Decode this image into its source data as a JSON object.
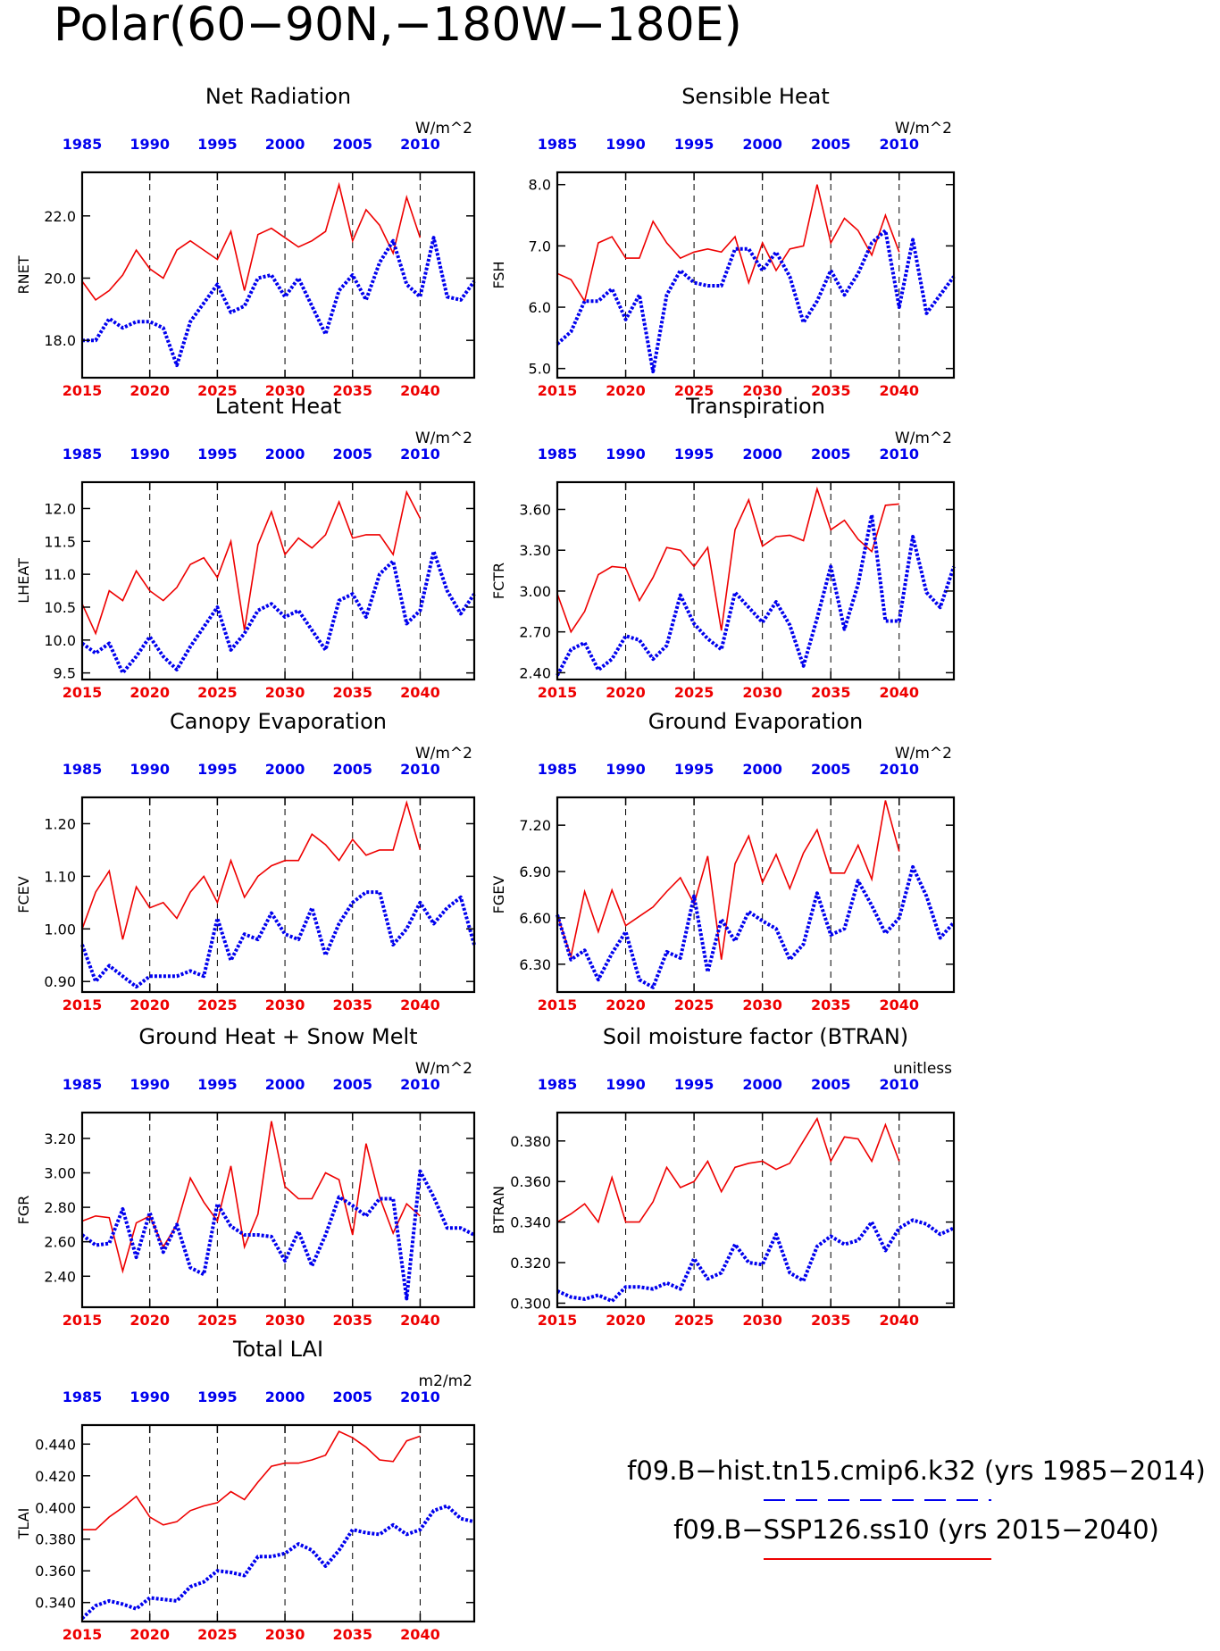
{
  "page_title": "Polar(60−90N,−180W−180E)",
  "colors": {
    "hist": "#0000ee",
    "ssp": "#ee0000",
    "axis": "#000000"
  },
  "legend": [
    {
      "label": "f09.B−hist.tn15.cmip6.k32 (yrs 1985−2014)",
      "color": "#0000ee",
      "style": "dashed"
    },
    {
      "label": "f09.B−SSP126.ss10 (yrs 2015−2040)",
      "color": "#ee0000",
      "style": "solid"
    }
  ],
  "chart_data": [
    {
      "type": "line",
      "title": "Net Radiation",
      "ylabel": "RNET",
      "units": "W/m^2",
      "x_bottom": [
        2015,
        2044
      ],
      "x_bottom_ticks": [
        2015,
        2020,
        2025,
        2030,
        2035,
        2040
      ],
      "x_top": [
        1985,
        2014
      ],
      "x_top_ticks": [
        1985,
        1990,
        1995,
        2000,
        2005,
        2010
      ],
      "ylim": [
        16.8,
        23.4
      ],
      "yticks": [
        18.0,
        20.0,
        22.0
      ],
      "ytick_labels": [
        "18.0",
        "20.0",
        "22.0"
      ],
      "series": [
        {
          "style": "solid",
          "values": [
            19.9,
            19.3,
            19.6,
            20.1,
            20.9,
            20.3,
            20.0,
            20.9,
            21.2,
            20.9,
            20.6,
            21.5,
            19.6,
            21.4,
            21.6,
            21.3,
            21.0,
            21.2,
            21.5,
            23.0,
            21.2,
            22.2,
            21.7,
            20.8,
            22.6,
            21.3
          ]
        },
        {
          "style": "dashed",
          "values": [
            18.0,
            18.0,
            18.7,
            18.4,
            18.6,
            18.6,
            18.4,
            17.2,
            18.6,
            19.2,
            19.8,
            18.9,
            19.1,
            20.0,
            20.1,
            19.4,
            20.0,
            19.1,
            18.2,
            19.6,
            20.1,
            19.3,
            20.5,
            21.2,
            19.8,
            19.4,
            21.3,
            19.4,
            19.3,
            19.9
          ]
        }
      ]
    },
    {
      "type": "line",
      "title": "Sensible Heat",
      "ylabel": "FSH",
      "units": "W/m^2",
      "x_bottom": [
        2015,
        2044
      ],
      "x_bottom_ticks": [
        2015,
        2020,
        2025,
        2030,
        2035,
        2040
      ],
      "x_top": [
        1985,
        2014
      ],
      "x_top_ticks": [
        1985,
        1990,
        1995,
        2000,
        2005,
        2010
      ],
      "ylim": [
        4.85,
        8.2
      ],
      "yticks": [
        5.0,
        6.0,
        7.0,
        8.0
      ],
      "ytick_labels": [
        "5.0",
        "6.0",
        "7.0",
        "8.0"
      ],
      "series": [
        {
          "style": "solid",
          "values": [
            6.55,
            6.45,
            6.1,
            7.05,
            7.15,
            6.8,
            6.8,
            7.4,
            7.05,
            6.8,
            6.9,
            6.95,
            6.9,
            7.15,
            6.4,
            7.05,
            6.6,
            6.95,
            7.0,
            8.0,
            7.05,
            7.45,
            7.25,
            6.85,
            7.5,
            6.9
          ]
        },
        {
          "style": "dashed",
          "values": [
            5.4,
            5.6,
            6.1,
            6.1,
            6.3,
            5.8,
            6.2,
            4.95,
            6.2,
            6.6,
            6.4,
            6.35,
            6.35,
            6.95,
            6.95,
            6.6,
            6.9,
            6.5,
            5.75,
            6.1,
            6.6,
            6.2,
            6.55,
            7.05,
            7.25,
            6.0,
            7.1,
            5.9,
            6.2,
            6.5
          ]
        }
      ]
    },
    {
      "type": "line",
      "title": "Latent Heat",
      "ylabel": "LHEAT",
      "units": "W/m^2",
      "x_bottom": [
        2015,
        2044
      ],
      "x_bottom_ticks": [
        2015,
        2020,
        2025,
        2030,
        2035,
        2040
      ],
      "x_top": [
        1985,
        2014
      ],
      "x_top_ticks": [
        1985,
        1990,
        1995,
        2000,
        2005,
        2010
      ],
      "ylim": [
        9.4,
        12.4
      ],
      "yticks": [
        9.5,
        10.0,
        10.5,
        11.0,
        11.5,
        12.0
      ],
      "ytick_labels": [
        "9.5",
        "10.0",
        "10.5",
        "11.0",
        "11.5",
        "12.0"
      ],
      "series": [
        {
          "style": "solid",
          "values": [
            10.55,
            10.1,
            10.75,
            10.6,
            11.05,
            10.75,
            10.6,
            10.8,
            11.15,
            11.25,
            10.95,
            11.5,
            10.15,
            11.45,
            11.95,
            11.3,
            11.55,
            11.4,
            11.6,
            12.1,
            11.55,
            11.6,
            11.6,
            11.3,
            12.25,
            11.85
          ]
        },
        {
          "style": "dashed",
          "values": [
            9.95,
            9.8,
            9.95,
            9.5,
            9.75,
            10.05,
            9.75,
            9.55,
            9.9,
            10.2,
            10.5,
            9.85,
            10.1,
            10.45,
            10.55,
            10.35,
            10.45,
            10.15,
            9.85,
            10.6,
            10.7,
            10.35,
            11.0,
            11.2,
            10.25,
            10.45,
            11.35,
            10.75,
            10.4,
            10.7
          ]
        }
      ]
    },
    {
      "type": "line",
      "title": "Transpiration",
      "ylabel": "FCTR",
      "units": "W/m^2",
      "x_bottom": [
        2015,
        2044
      ],
      "x_bottom_ticks": [
        2015,
        2020,
        2025,
        2030,
        2035,
        2040
      ],
      "x_top": [
        1985,
        2014
      ],
      "x_top_ticks": [
        1985,
        1990,
        1995,
        2000,
        2005,
        2010
      ],
      "ylim": [
        2.35,
        3.8
      ],
      "yticks": [
        2.4,
        2.7,
        3.0,
        3.3,
        3.6
      ],
      "ytick_labels": [
        "2.40",
        "2.70",
        "3.00",
        "3.30",
        "3.60"
      ],
      "series": [
        {
          "style": "solid",
          "values": [
            2.98,
            2.7,
            2.85,
            3.12,
            3.18,
            3.17,
            2.93,
            3.1,
            3.32,
            3.3,
            3.18,
            3.32,
            2.71,
            3.45,
            3.67,
            3.33,
            3.4,
            3.41,
            3.37,
            3.75,
            3.45,
            3.52,
            3.38,
            3.29,
            3.63,
            3.64
          ]
        },
        {
          "style": "dashed",
          "values": [
            2.38,
            2.57,
            2.62,
            2.42,
            2.5,
            2.67,
            2.64,
            2.5,
            2.6,
            2.97,
            2.76,
            2.65,
            2.57,
            2.99,
            2.88,
            2.77,
            2.92,
            2.75,
            2.45,
            2.8,
            3.18,
            2.72,
            3.05,
            3.56,
            2.78,
            2.78,
            3.4,
            2.99,
            2.88,
            3.18
          ]
        }
      ]
    },
    {
      "type": "line",
      "title": "Canopy Evaporation",
      "ylabel": "FCEV",
      "units": "W/m^2",
      "x_bottom": [
        2015,
        2044
      ],
      "x_bottom_ticks": [
        2015,
        2020,
        2025,
        2030,
        2035,
        2040
      ],
      "x_top": [
        1985,
        2014
      ],
      "x_top_ticks": [
        1985,
        1990,
        1995,
        2000,
        2005,
        2010
      ],
      "ylim": [
        0.88,
        1.25
      ],
      "yticks": [
        0.9,
        1.0,
        1.1,
        1.2
      ],
      "ytick_labels": [
        "0.90",
        "1.00",
        "1.10",
        "1.20"
      ],
      "series": [
        {
          "style": "solid",
          "values": [
            1.0,
            1.07,
            1.11,
            0.98,
            1.08,
            1.04,
            1.05,
            1.02,
            1.07,
            1.1,
            1.05,
            1.13,
            1.06,
            1.1,
            1.12,
            1.13,
            1.13,
            1.18,
            1.16,
            1.13,
            1.17,
            1.14,
            1.15,
            1.15,
            1.24,
            1.15
          ]
        },
        {
          "style": "dashed",
          "values": [
            0.97,
            0.9,
            0.93,
            0.91,
            0.89,
            0.91,
            0.91,
            0.91,
            0.92,
            0.91,
            1.02,
            0.94,
            0.99,
            0.98,
            1.03,
            0.99,
            0.98,
            1.04,
            0.95,
            1.01,
            1.05,
            1.07,
            1.07,
            0.97,
            1.0,
            1.05,
            1.01,
            1.04,
            1.06,
            0.97
          ]
        }
      ]
    },
    {
      "type": "line",
      "title": "Ground Evaporation",
      "ylabel": "FGEV",
      "units": "W/m^2",
      "x_bottom": [
        2015,
        2044
      ],
      "x_bottom_ticks": [
        2015,
        2020,
        2025,
        2030,
        2035,
        2040
      ],
      "x_top": [
        1985,
        2014
      ],
      "x_top_ticks": [
        1985,
        1990,
        1995,
        2000,
        2005,
        2010
      ],
      "ylim": [
        6.12,
        7.38
      ],
      "yticks": [
        6.3,
        6.6,
        6.9,
        7.2
      ],
      "ytick_labels": [
        "6.30",
        "6.60",
        "6.90",
        "7.20"
      ],
      "series": [
        {
          "style": "solid",
          "values": [
            6.62,
            6.35,
            6.77,
            6.51,
            6.78,
            6.55,
            6.61,
            6.67,
            6.77,
            6.86,
            6.69,
            7.0,
            6.33,
            6.95,
            7.13,
            6.83,
            7.01,
            6.79,
            7.02,
            7.17,
            6.89,
            6.89,
            7.07,
            6.85,
            7.36,
            7.03
          ]
        },
        {
          "style": "dashed",
          "values": [
            6.62,
            6.33,
            6.39,
            6.2,
            6.37,
            6.51,
            6.2,
            6.15,
            6.38,
            6.34,
            6.74,
            6.25,
            6.59,
            6.45,
            6.64,
            6.58,
            6.53,
            6.33,
            6.43,
            6.76,
            6.49,
            6.53,
            6.84,
            6.68,
            6.5,
            6.6,
            6.93,
            6.74,
            6.47,
            6.57
          ]
        }
      ]
    },
    {
      "type": "line",
      "title": "Ground Heat + Snow Melt",
      "ylabel": "FGR",
      "units": "W/m^2",
      "x_bottom": [
        2015,
        2044
      ],
      "x_bottom_ticks": [
        2015,
        2020,
        2025,
        2030,
        2035,
        2040
      ],
      "x_top": [
        1985,
        2014
      ],
      "x_top_ticks": [
        1985,
        1990,
        1995,
        2000,
        2005,
        2010
      ],
      "ylim": [
        2.22,
        3.35
      ],
      "yticks": [
        2.4,
        2.6,
        2.8,
        3.0,
        3.2
      ],
      "ytick_labels": [
        "2.40",
        "2.60",
        "2.80",
        "3.00",
        "3.20"
      ],
      "series": [
        {
          "style": "solid",
          "values": [
            2.72,
            2.75,
            2.74,
            2.43,
            2.71,
            2.75,
            2.57,
            2.7,
            2.97,
            2.83,
            2.72,
            3.04,
            2.57,
            2.76,
            3.3,
            2.92,
            2.85,
            2.85,
            3.0,
            2.96,
            2.64,
            3.17,
            2.86,
            2.65,
            2.82,
            2.75
          ]
        },
        {
          "style": "dashed",
          "values": [
            2.64,
            2.58,
            2.59,
            2.79,
            2.51,
            2.77,
            2.54,
            2.7,
            2.45,
            2.41,
            2.82,
            2.69,
            2.64,
            2.64,
            2.63,
            2.49,
            2.66,
            2.46,
            2.64,
            2.86,
            2.81,
            2.75,
            2.85,
            2.85,
            2.27,
            3.01,
            2.86,
            2.68,
            2.68,
            2.64
          ]
        }
      ]
    },
    {
      "type": "line",
      "title": "Soil moisture factor (BTRAN)",
      "ylabel": "BTRAN",
      "units": "unitless",
      "x_bottom": [
        2015,
        2044
      ],
      "x_bottom_ticks": [
        2015,
        2020,
        2025,
        2030,
        2035,
        2040
      ],
      "x_top": [
        1985,
        2014
      ],
      "x_top_ticks": [
        1985,
        1990,
        1995,
        2000,
        2005,
        2010
      ],
      "ylim": [
        0.298,
        0.394
      ],
      "yticks": [
        0.3,
        0.32,
        0.34,
        0.36,
        0.38
      ],
      "ytick_labels": [
        "0.300",
        "0.320",
        "0.340",
        "0.360",
        "0.380"
      ],
      "series": [
        {
          "style": "solid",
          "values": [
            0.34,
            0.344,
            0.349,
            0.34,
            0.362,
            0.34,
            0.34,
            0.35,
            0.367,
            0.357,
            0.36,
            0.37,
            0.355,
            0.367,
            0.369,
            0.37,
            0.366,
            0.369,
            0.38,
            0.391,
            0.37,
            0.382,
            0.381,
            0.37,
            0.388,
            0.37
          ]
        },
        {
          "style": "dashed",
          "values": [
            0.306,
            0.303,
            0.302,
            0.304,
            0.301,
            0.308,
            0.308,
            0.307,
            0.31,
            0.307,
            0.322,
            0.312,
            0.315,
            0.329,
            0.32,
            0.319,
            0.334,
            0.315,
            0.311,
            0.328,
            0.333,
            0.329,
            0.331,
            0.34,
            0.326,
            0.337,
            0.341,
            0.339,
            0.334,
            0.337
          ]
        }
      ]
    },
    {
      "type": "line",
      "title": "Total LAI",
      "ylabel": "TLAI",
      "units": "m2/m2",
      "x_bottom": [
        2015,
        2044
      ],
      "x_bottom_ticks": [
        2015,
        2020,
        2025,
        2030,
        2035,
        2040
      ],
      "x_top": [
        1985,
        2014
      ],
      "x_top_ticks": [
        1985,
        1990,
        1995,
        2000,
        2005,
        2010
      ],
      "ylim": [
        0.328,
        0.452
      ],
      "yticks": [
        0.34,
        0.36,
        0.38,
        0.4,
        0.42,
        0.44
      ],
      "ytick_labels": [
        "0.340",
        "0.360",
        "0.380",
        "0.400",
        "0.420",
        "0.440"
      ],
      "series": [
        {
          "style": "solid",
          "values": [
            0.386,
            0.386,
            0.394,
            0.4,
            0.407,
            0.394,
            0.389,
            0.391,
            0.398,
            0.401,
            0.403,
            0.41,
            0.405,
            0.416,
            0.426,
            0.428,
            0.428,
            0.43,
            0.433,
            0.448,
            0.444,
            0.438,
            0.43,
            0.429,
            0.442,
            0.445
          ]
        },
        {
          "style": "dashed",
          "values": [
            0.33,
            0.338,
            0.341,
            0.339,
            0.336,
            0.343,
            0.342,
            0.341,
            0.35,
            0.353,
            0.36,
            0.359,
            0.357,
            0.369,
            0.369,
            0.371,
            0.377,
            0.373,
            0.363,
            0.373,
            0.386,
            0.384,
            0.383,
            0.389,
            0.383,
            0.386,
            0.398,
            0.401,
            0.393,
            0.391
          ]
        }
      ]
    }
  ]
}
